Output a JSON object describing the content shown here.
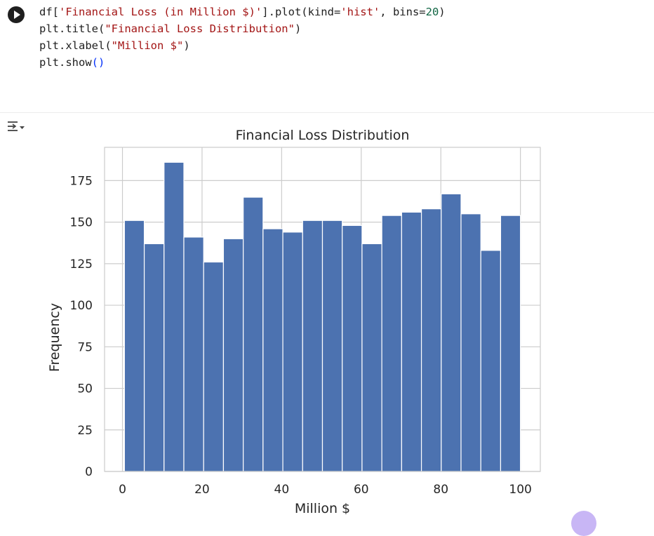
{
  "code": {
    "line1": {
      "p1": "df[",
      "s1": "'Financial Loss (in Million $)'",
      "p2": "].plot(kind=",
      "s2": "'hist'",
      "p3": ", bins=",
      "n1": "20",
      "p4": ")"
    },
    "line2": {
      "p1": "plt.title(",
      "s1": "\"Financial Loss Distribution\"",
      "p2": ")"
    },
    "line3": {
      "p1": "plt.xlabel(",
      "s1": "\"Million $\"",
      "p2": ")"
    },
    "line4": {
      "p1": "plt.show",
      "paren": "()"
    }
  },
  "icons": {
    "run": "play-icon",
    "output": "output-toggle-icon"
  },
  "colors": {
    "bar": "#4c72b0",
    "grid": "#cccccc",
    "axis_frame": "#cccccc"
  },
  "chart_data": {
    "type": "bar",
    "title": "Financial Loss Distribution",
    "xlabel": "Million $",
    "ylabel": "Frequency",
    "bins": 20,
    "bin_edges": [
      0.5,
      5.475,
      10.45,
      15.425,
      20.4,
      25.375,
      30.35,
      35.325,
      40.3,
      45.275,
      50.25,
      55.225,
      60.2,
      65.175,
      70.15,
      75.125,
      80.1,
      85.075,
      90.05,
      95.025,
      100
    ],
    "values": [
      151,
      137,
      186,
      141,
      126,
      140,
      165,
      146,
      144,
      151,
      151,
      148,
      137,
      154,
      156,
      158,
      167,
      155,
      133,
      154
    ],
    "xlim": [
      -4.5,
      105
    ],
    "ylim": [
      0,
      195
    ],
    "xticks": [
      0,
      20,
      40,
      60,
      80,
      100
    ],
    "yticks": [
      0,
      25,
      50,
      75,
      100,
      125,
      150,
      175
    ],
    "grid": true
  }
}
